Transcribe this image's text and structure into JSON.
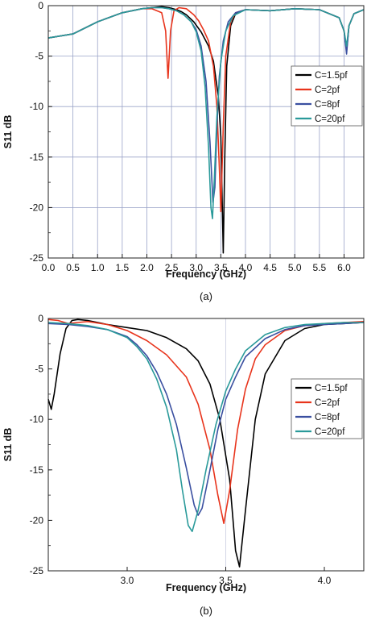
{
  "chart_data": [
    {
      "type": "line",
      "caption": "(a)",
      "xlabel": "Frequency (GHz)",
      "ylabel": "S11 dB",
      "xlim": [
        0.0,
        6.4
      ],
      "ylim": [
        -25,
        0
      ],
      "xticks": [
        0.0,
        0.5,
        1.0,
        1.5,
        2.0,
        2.5,
        3.0,
        3.5,
        4.0,
        4.5,
        5.0,
        5.5,
        6.0
      ],
      "xtick_labels": [
        "0.0",
        "0.5",
        "1.0",
        "1.5",
        "2.0",
        "2.5",
        "3.0",
        "3.5",
        "4.0",
        "4.5",
        "5.0",
        "5.5",
        "6.0"
      ],
      "yticks": [
        0,
        -5,
        -10,
        -15,
        -20,
        -25
      ],
      "ytick_labels": [
        "0",
        "-5",
        "-10",
        "-15",
        "-20",
        "-25"
      ],
      "grid": true,
      "legend_position": "right",
      "series": [
        {
          "name": "C=1.5pf",
          "color": "#000000",
          "x": [
            0.0,
            0.5,
            1.0,
            1.5,
            1.9,
            2.1,
            2.3,
            2.45,
            2.6,
            2.7,
            2.8,
            2.95,
            3.1,
            3.25,
            3.35,
            3.45,
            3.5,
            3.55,
            3.58,
            3.62,
            3.7,
            3.8,
            4.0,
            4.5,
            5.0,
            5.5,
            5.9,
            6.0,
            6.05,
            6.1,
            6.2,
            6.4
          ],
          "y": [
            -3.2,
            -2.8,
            -1.6,
            -0.7,
            -0.3,
            -0.2,
            -0.1,
            -0.2,
            -0.4,
            -0.6,
            -0.9,
            -1.6,
            -2.6,
            -4.0,
            -5.5,
            -9.0,
            -13.0,
            -24.5,
            -15.0,
            -6.0,
            -2.0,
            -0.8,
            -0.4,
            -0.5,
            -0.3,
            -0.4,
            -1.2,
            -2.5,
            -4.5,
            -2.0,
            -0.8,
            -0.4
          ]
        },
        {
          "name": "C=2pf",
          "color": "#e8341c",
          "x": [
            0.0,
            0.5,
            1.0,
            1.5,
            1.9,
            2.1,
            2.3,
            2.38,
            2.43,
            2.48,
            2.55,
            2.65,
            2.8,
            2.95,
            3.05,
            3.15,
            3.25,
            3.35,
            3.42,
            3.47,
            3.5,
            3.55,
            3.6,
            3.7,
            3.8,
            4.0,
            4.5,
            5.0,
            5.5,
            5.9,
            6.0,
            6.05,
            6.1,
            6.2,
            6.4
          ],
          "y": [
            -3.2,
            -2.8,
            -1.6,
            -0.7,
            -0.3,
            -0.3,
            -0.7,
            -2.5,
            -7.2,
            -2.5,
            -0.5,
            -0.2,
            -0.3,
            -0.9,
            -1.5,
            -2.4,
            -3.5,
            -6.0,
            -10.0,
            -16.0,
            -20.4,
            -12.0,
            -5.0,
            -1.6,
            -0.7,
            -0.4,
            -0.5,
            -0.3,
            -0.4,
            -1.2,
            -2.5,
            -4.5,
            -2.0,
            -0.8,
            -0.4
          ]
        },
        {
          "name": "C=8pf",
          "color": "#3a4fa0",
          "x": [
            0.0,
            0.5,
            1.0,
            1.5,
            1.9,
            2.1,
            2.3,
            2.45,
            2.6,
            2.75,
            2.9,
            3.0,
            3.1,
            3.2,
            3.28,
            3.34,
            3.38,
            3.42,
            3.47,
            3.55,
            3.65,
            3.8,
            4.0,
            4.5,
            5.0,
            5.5,
            5.9,
            6.0,
            6.05,
            6.1,
            6.2,
            6.4
          ],
          "y": [
            -3.2,
            -2.8,
            -1.6,
            -0.7,
            -0.3,
            -0.2,
            -0.2,
            -0.3,
            -0.5,
            -0.9,
            -1.6,
            -2.4,
            -4.0,
            -7.5,
            -13.5,
            -19.5,
            -18.0,
            -12.0,
            -7.0,
            -3.5,
            -1.6,
            -0.7,
            -0.4,
            -0.5,
            -0.3,
            -0.4,
            -1.2,
            -2.5,
            -4.8,
            -2.0,
            -0.8,
            -0.4
          ]
        },
        {
          "name": "C=20pf",
          "color": "#2a9a9a",
          "x": [
            0.0,
            0.5,
            1.0,
            1.5,
            1.9,
            2.1,
            2.3,
            2.45,
            2.6,
            2.75,
            2.9,
            3.0,
            3.1,
            3.18,
            3.25,
            3.3,
            3.33,
            3.37,
            3.42,
            3.5,
            3.6,
            3.75,
            4.0,
            4.5,
            5.0,
            5.5,
            5.9,
            6.0,
            6.05,
            6.1,
            6.2,
            6.4
          ],
          "y": [
            -3.2,
            -2.8,
            -1.6,
            -0.7,
            -0.3,
            -0.2,
            -0.2,
            -0.3,
            -0.5,
            -0.9,
            -1.6,
            -2.6,
            -4.5,
            -8.0,
            -14.0,
            -20.0,
            -21.1,
            -17.0,
            -11.0,
            -5.5,
            -2.5,
            -1.0,
            -0.4,
            -0.5,
            -0.3,
            -0.4,
            -1.2,
            -2.5,
            -4.0,
            -2.0,
            -0.8,
            -0.4
          ]
        }
      ]
    },
    {
      "type": "line",
      "caption": "(b)",
      "xlabel": "Frequency (GHz)",
      "ylabel": "S11 dB",
      "xlim": [
        2.6,
        4.2
      ],
      "ylim": [
        -25,
        0
      ],
      "xticks": [
        3.0,
        3.5,
        4.0
      ],
      "xtick_labels": [
        "3.0",
        "3.5",
        "4.0"
      ],
      "yticks": [
        0,
        -5,
        -10,
        -15,
        -20,
        -25
      ],
      "ytick_labels": [
        "0",
        "-5",
        "-10",
        "-15",
        "-20",
        "-25"
      ],
      "grid": false,
      "legend_position": "right",
      "series": [
        {
          "name": "C=1.5pf",
          "color": "#000000",
          "x": [
            2.6,
            2.615,
            2.63,
            2.66,
            2.69,
            2.72,
            2.75,
            2.8,
            2.9,
            3.0,
            3.1,
            3.2,
            3.3,
            3.36,
            3.42,
            3.47,
            3.52,
            3.55,
            3.57,
            3.6,
            3.65,
            3.7,
            3.8,
            3.9,
            4.0,
            4.1,
            4.2
          ],
          "y": [
            -8.0,
            -9.0,
            -7.5,
            -3.5,
            -1.0,
            -0.2,
            -0.1,
            -0.2,
            -0.6,
            -0.9,
            -1.2,
            -1.9,
            -3.0,
            -4.2,
            -6.5,
            -10.0,
            -16.0,
            -23.0,
            -24.6,
            -19.0,
            -10.0,
            -5.5,
            -2.2,
            -1.0,
            -0.6,
            -0.5,
            -0.4
          ]
        },
        {
          "name": "C=2pf",
          "color": "#e8341c",
          "x": [
            2.6,
            2.65,
            2.7,
            2.75,
            2.8,
            2.9,
            3.0,
            3.1,
            3.2,
            3.3,
            3.36,
            3.42,
            3.46,
            3.49,
            3.52,
            3.56,
            3.6,
            3.65,
            3.7,
            3.8,
            3.9,
            4.0,
            4.1,
            4.2
          ],
          "y": [
            -0.1,
            -0.2,
            -0.5,
            -0.4,
            -0.3,
            -0.6,
            -1.2,
            -2.2,
            -3.6,
            -5.8,
            -8.5,
            -13.0,
            -17.5,
            -20.3,
            -17.0,
            -11.0,
            -7.0,
            -4.0,
            -2.6,
            -1.2,
            -0.7,
            -0.5,
            -0.4,
            -0.3
          ]
        },
        {
          "name": "C=8pf",
          "color": "#3a4fa0",
          "x": [
            2.6,
            2.7,
            2.8,
            2.9,
            3.0,
            3.05,
            3.1,
            3.15,
            3.2,
            3.25,
            3.3,
            3.34,
            3.36,
            3.38,
            3.42,
            3.46,
            3.5,
            3.55,
            3.6,
            3.7,
            3.8,
            3.9,
            4.0,
            4.1,
            4.2
          ],
          "y": [
            -0.5,
            -0.6,
            -0.8,
            -1.1,
            -1.8,
            -2.6,
            -3.7,
            -5.3,
            -7.5,
            -10.5,
            -14.8,
            -18.5,
            -19.5,
            -18.8,
            -15.0,
            -11.0,
            -8.0,
            -5.8,
            -3.8,
            -2.0,
            -1.1,
            -0.7,
            -0.6,
            -0.5,
            -0.4
          ]
        },
        {
          "name": "C=20pf",
          "color": "#2a9a9a",
          "x": [
            2.6,
            2.7,
            2.8,
            2.9,
            3.0,
            3.05,
            3.1,
            3.15,
            3.2,
            3.25,
            3.28,
            3.31,
            3.33,
            3.36,
            3.4,
            3.45,
            3.5,
            3.55,
            3.6,
            3.7,
            3.8,
            3.9,
            4.0,
            4.1,
            4.2
          ],
          "y": [
            -0.4,
            -0.5,
            -0.7,
            -1.1,
            -1.9,
            -2.8,
            -4.0,
            -6.0,
            -8.8,
            -13.0,
            -17.0,
            -20.5,
            -21.1,
            -19.0,
            -15.0,
            -10.5,
            -7.2,
            -5.0,
            -3.2,
            -1.6,
            -0.9,
            -0.6,
            -0.5,
            -0.4,
            -0.4
          ]
        }
      ]
    }
  ]
}
